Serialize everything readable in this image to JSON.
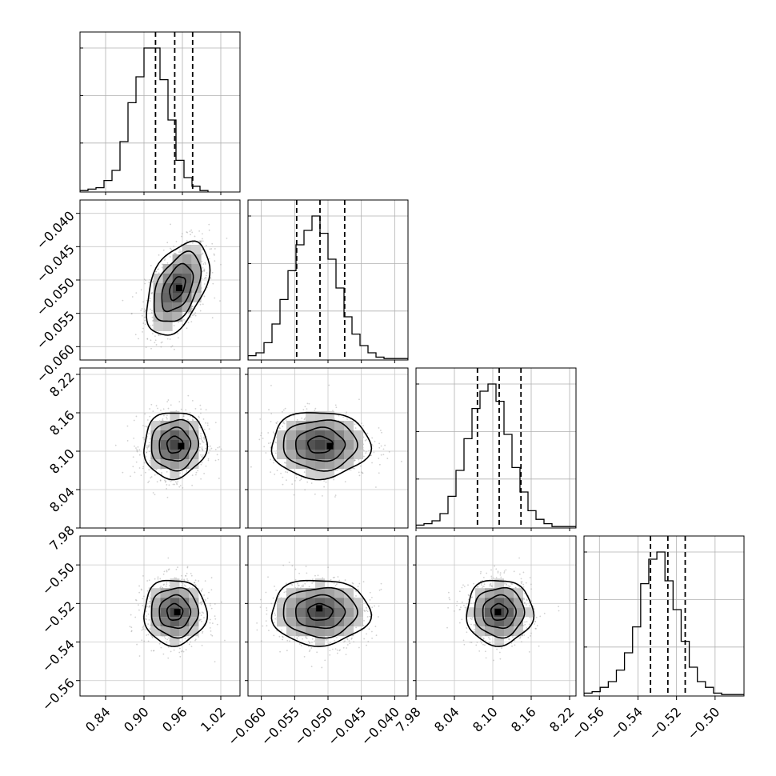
{
  "chart_data": {
    "type": "corner",
    "grid": true,
    "parameters": [
      {
        "range": [
          0.8,
          1.05
        ],
        "ticks": [
          0.84,
          0.9,
          0.96,
          1.02
        ],
        "tick_labels": [
          "0.84",
          "0.90",
          "0.96",
          "1.02"
        ],
        "quantiles": [
          0.918,
          0.948,
          0.976
        ],
        "hist": {
          "edges_start": 0.8,
          "bin_width": 0.0125,
          "counts": [
            1,
            2,
            3,
            8,
            15,
            35,
            62,
            80,
            100,
            100,
            78,
            50,
            22,
            10,
            4,
            1
          ]
        }
      },
      {
        "range": [
          -0.062,
          -0.038
        ],
        "ticks": [
          -0.06,
          -0.055,
          -0.05,
          -0.045,
          -0.04
        ],
        "tick_labels": [
          "−0.060",
          "−0.055",
          "−0.050",
          "−0.045",
          "−0.040"
        ],
        "quantiles": [
          -0.0547,
          -0.0512,
          -0.0475
        ],
        "hist": {
          "edges_start": -0.062,
          "bin_width": 0.0012,
          "counts": [
            3,
            5,
            12,
            25,
            42,
            62,
            80,
            90,
            100,
            88,
            70,
            50,
            30,
            18,
            10,
            5,
            2,
            1,
            1,
            1
          ]
        }
      },
      {
        "range": [
          7.98,
          8.23
        ],
        "ticks": [
          7.98,
          8.04,
          8.1,
          8.16,
          8.22
        ],
        "tick_labels": [
          "7.98",
          "8.04",
          "8.10",
          "8.16",
          "8.22"
        ],
        "quantiles": [
          8.076,
          8.11,
          8.144
        ],
        "hist": {
          "edges_start": 7.98,
          "bin_width": 0.0125,
          "counts": [
            2,
            3,
            5,
            10,
            22,
            40,
            62,
            83,
            95,
            100,
            88,
            65,
            42,
            25,
            12,
            6,
            3,
            1,
            1,
            1
          ]
        }
      },
      {
        "range": [
          -0.568,
          -0.485
        ],
        "ticks": [
          -0.56,
          -0.54,
          -0.52,
          -0.5
        ],
        "tick_labels": [
          "−0.56",
          "−0.54",
          "−0.52",
          "−0.50"
        ],
        "quantiles": [
          -0.5335,
          -0.5245,
          -0.5155
        ],
        "hist": {
          "edges_start": -0.568,
          "bin_width": 0.0042,
          "counts": [
            2,
            3,
            6,
            10,
            18,
            30,
            48,
            78,
            95,
            100,
            80,
            60,
            38,
            20,
            10,
            6,
            2,
            1,
            1,
            1
          ]
        }
      }
    ],
    "pairs": [
      {
        "x": 0,
        "y": 1,
        "center": [
          0.952,
          -0.0512
        ],
        "sd": [
          0.0245,
          0.0035
        ],
        "corr": 0.45,
        "mode": [
          0.955,
          -0.0512
        ]
      },
      {
        "x": 0,
        "y": 2,
        "center": [
          0.948,
          8.11
        ],
        "sd": [
          0.0245,
          0.026
        ],
        "corr": 0.05,
        "mode": [
          0.958,
          8.108
        ]
      },
      {
        "x": 1,
        "y": 2,
        "center": [
          -0.0512,
          8.11
        ],
        "sd": [
          0.0037,
          0.026
        ],
        "corr": 0.0,
        "mode": [
          -0.0497,
          8.108
        ]
      },
      {
        "x": 0,
        "y": 3,
        "center": [
          0.948,
          -0.5245
        ],
        "sd": [
          0.0245,
          0.0085
        ],
        "corr": 0.0,
        "mode": [
          0.952,
          -0.5245
        ]
      },
      {
        "x": 1,
        "y": 3,
        "center": [
          -0.0512,
          -0.5245
        ],
        "sd": [
          0.0037,
          0.0085
        ],
        "corr": 0.0,
        "mode": [
          -0.0513,
          -0.5225
        ]
      },
      {
        "x": 2,
        "y": 3,
        "center": [
          8.11,
          -0.5245
        ],
        "sd": [
          0.026,
          0.0085
        ],
        "corr": 0.0,
        "mode": [
          8.108,
          -0.5245
        ]
      }
    ]
  }
}
